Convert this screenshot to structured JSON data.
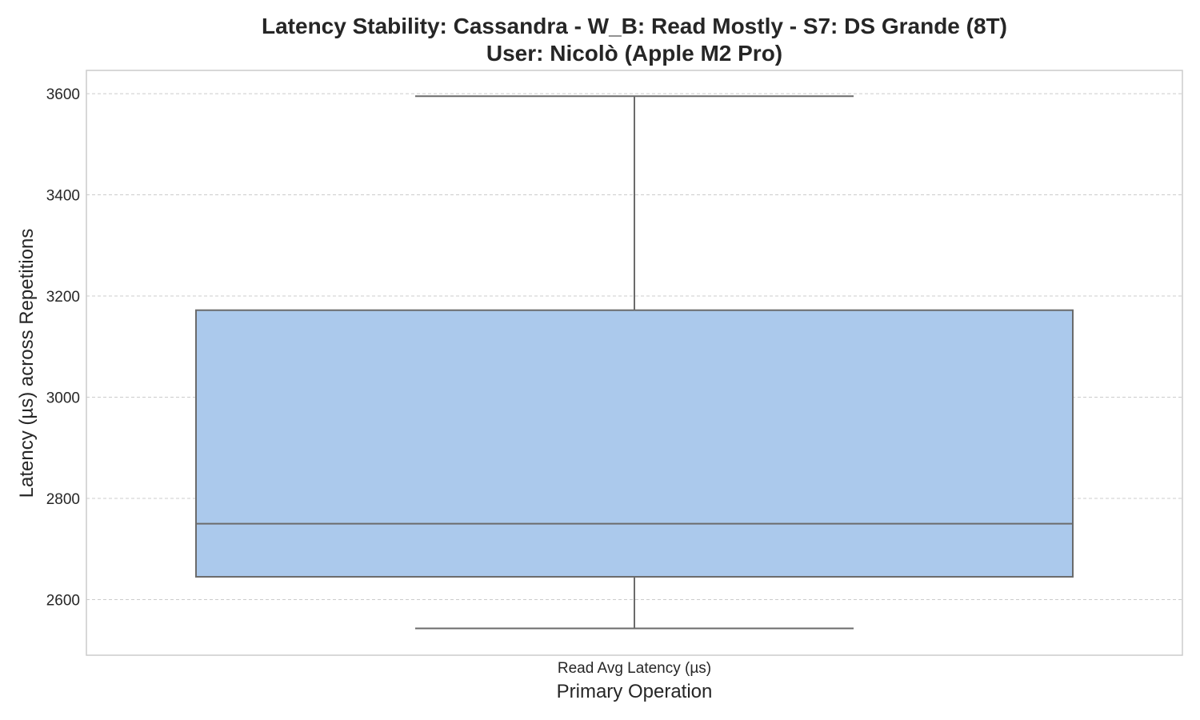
{
  "chart_data": {
    "type": "box",
    "title": "Latency Stability: Cassandra - W_B: Read Mostly - S7: DS Grande (8T)",
    "subtitle": "User: Nicolò (Apple M2 Pro)",
    "xlabel": "Primary Operation",
    "ylabel": "Latency (µs) across Repetitions",
    "categories": [
      "Read Avg Latency (µs)"
    ],
    "boxes": [
      {
        "category": "Read Avg Latency (µs)",
        "whisker_low": 2543,
        "q1": 2645,
        "median": 2750,
        "q3": 3172,
        "whisker_high": 3595
      }
    ],
    "ylim": [
      2490,
      3646
    ],
    "yticks": [
      2600,
      2800,
      3000,
      3200,
      3400,
      3600
    ],
    "grid": true,
    "legend": "none",
    "colors": {
      "box_fill": "#abc9ec",
      "box_edge": "#6b6b6b",
      "grid": "#cccccc",
      "frame": "#cccccc"
    }
  }
}
